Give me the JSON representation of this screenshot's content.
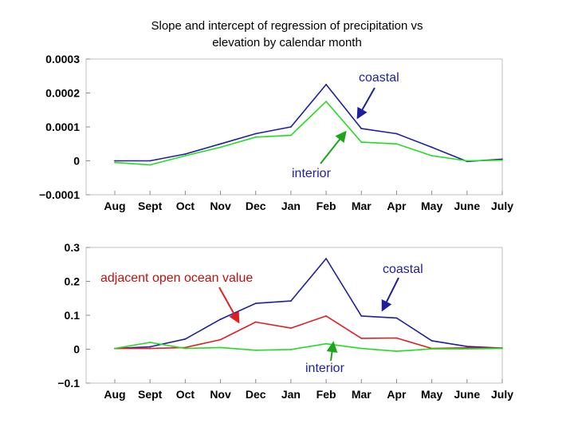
{
  "title_lines": [
    "Slope and intercept of regression of precipitation vs",
    "elevation by calendar month"
  ],
  "chart_data": [
    {
      "type": "line",
      "title": "Slope and intercept of regression of precipitation vs elevation by calendar month",
      "categories": [
        "Aug",
        "Sept",
        "Oct",
        "Nov",
        "Dec",
        "Jan",
        "Feb",
        "Mar",
        "Apr",
        "May",
        "June",
        "July"
      ],
      "ylim": [
        -0.0001,
        0.0003
      ],
      "yticks": [
        -0.0001,
        0,
        0.0001,
        0.0002,
        0.0003
      ],
      "ytick_labels": [
        "−0.0001",
        "0",
        "0.0001",
        "0.0002",
        "0.0003"
      ],
      "grid": false,
      "series": [
        {
          "name": "coastal",
          "color": "#1f1f9e",
          "values": [
            0.0,
            0.0,
            2e-05,
            5e-05,
            8e-05,
            0.0001,
            0.000225,
            9.5e-05,
            8e-05,
            4e-05,
            -2e-06,
            5e-06
          ]
        },
        {
          "name": "interior",
          "color": "#22dd22",
          "values": [
            -5e-06,
            -1.2e-05,
            1.5e-05,
            4e-05,
            7e-05,
            7.5e-05,
            0.000175,
            5.5e-05,
            5e-05,
            1.5e-05,
            0.0,
            2e-06
          ]
        }
      ],
      "annotations": [
        {
          "text": "coastal",
          "color": "#1f1f9e",
          "points_to": "coastal"
        },
        {
          "text": "interior",
          "color": "#1f1f9e",
          "points_to": "interior"
        }
      ]
    },
    {
      "type": "line",
      "categories": [
        "Aug",
        "Sept",
        "Oct",
        "Nov",
        "Dec",
        "Jan",
        "Feb",
        "Mar",
        "Apr",
        "May",
        "June",
        "July"
      ],
      "ylim": [
        -0.1,
        0.3
      ],
      "yticks": [
        -0.1,
        0,
        0.1,
        0.2,
        0.3
      ],
      "ytick_labels": [
        "−0.1",
        "0",
        "0.1",
        "0.2",
        "0.3"
      ],
      "grid": false,
      "series": [
        {
          "name": "coastal",
          "color": "#1f1f9e",
          "values": [
            0.002,
            0.007,
            0.03,
            0.088,
            0.135,
            0.142,
            0.267,
            0.098,
            0.092,
            0.025,
            0.008,
            0.003
          ]
        },
        {
          "name": "adjacent open ocean value",
          "color": "#e02020",
          "values": [
            0.002,
            0.002,
            0.005,
            0.028,
            0.08,
            0.062,
            0.098,
            0.032,
            0.033,
            0.002,
            0.004,
            0.003
          ]
        },
        {
          "name": "interior",
          "color": "#22dd22",
          "values": [
            0.002,
            0.02,
            0.002,
            0.005,
            -0.003,
            -0.001,
            0.016,
            0.002,
            -0.006,
            0.001,
            0.001,
            0.002
          ]
        }
      ],
      "annotations": [
        {
          "text": "coastal",
          "color": "#1f1f9e",
          "points_to": "coastal"
        },
        {
          "text": "adjacent open ocean value",
          "color": "#c01010",
          "points_to": "adjacent open ocean value"
        },
        {
          "text": "interior",
          "color": "#1f1f9e",
          "points_to": "interior"
        }
      ]
    }
  ]
}
